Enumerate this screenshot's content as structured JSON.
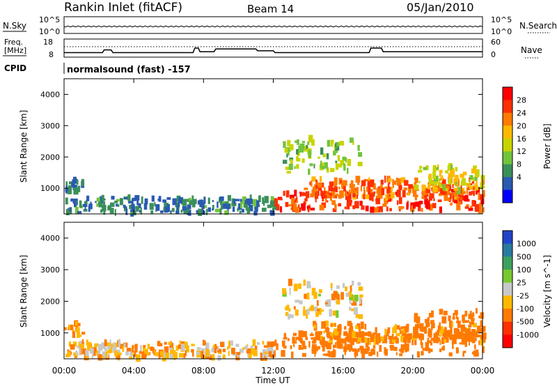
{
  "header": {
    "station": "Rankin Inlet (fitACF)",
    "beam": "Beam 14",
    "date": "05/Jan/2010"
  },
  "top_panel": {
    "left_label": "N.Sky",
    "right_label": "N.Search",
    "left_ticks": [
      "10^5",
      "10^0"
    ],
    "right_ticks": [
      "10^5",
      "10^0"
    ]
  },
  "freq_panel": {
    "left_label_1": "Freq.",
    "left_label_2": "[MHz]",
    "right_label": "Nave",
    "left_ticks": [
      "18",
      "8"
    ],
    "right_ticks": [
      "60",
      "0"
    ],
    "cpid_label": "CPID",
    "cpid_text": "normalsound (fast) -157"
  },
  "xaxis": {
    "label": "Time UT",
    "ticks": [
      "00:00",
      "04:00",
      "08:00",
      "12:00",
      "16:00",
      "20:00",
      "00:00"
    ]
  },
  "power_panel": {
    "ylabel": "Slant Range [km]",
    "yticks": [
      "1000",
      "2000",
      "3000",
      "4000"
    ],
    "cbar_label": "Power [dB]",
    "cbar_ticks": [
      "28",
      "24",
      "20",
      "16",
      "12",
      "8",
      "4"
    ],
    "cbar_colors": [
      "#ff0000",
      "#ff3000",
      "#ff7a00",
      "#ffb800",
      "#c8d400",
      "#72c43c",
      "#3a8f5a",
      "#2a5ab0",
      "#0000ff"
    ]
  },
  "velocity_panel": {
    "ylabel": "Slant Range [km]",
    "yticks": [
      "1000",
      "2000",
      "3000",
      "4000"
    ],
    "cbar_label": "Velocity [m s^-1]",
    "cbar_ticks": [
      "1000",
      "500",
      "100",
      "25",
      "-25",
      "-100",
      "-500",
      "-1000"
    ],
    "cbar_colors": [
      "#2244c8",
      "#2a7aa0",
      "#3ea060",
      "#78c830",
      "#c8c8c8",
      "#ffb800",
      "#ff7a00",
      "#ff3000",
      "#ff0000"
    ]
  },
  "chart_data": {
    "type": "heatmap",
    "x_range_hours": [
      0,
      24
    ],
    "y_range_km": [
      180,
      4500
    ],
    "freq_series": [
      {
        "t": 0,
        "f": 10.5
      },
      {
        "t": 2.2,
        "f": 10.5
      },
      {
        "t": 2.3,
        "f": 12
      },
      {
        "t": 2.7,
        "f": 12
      },
      {
        "t": 2.8,
        "f": 10.5
      },
      {
        "t": 7.4,
        "f": 10.5
      },
      {
        "t": 7.5,
        "f": 13
      },
      {
        "t": 7.7,
        "f": 13
      },
      {
        "t": 7.8,
        "f": 11
      },
      {
        "t": 8.6,
        "f": 11
      },
      {
        "t": 8.7,
        "f": 12.5
      },
      {
        "t": 11,
        "f": 12.5
      },
      {
        "t": 11.1,
        "f": 11.5
      },
      {
        "t": 12,
        "f": 11.5
      },
      {
        "t": 12.1,
        "f": 10.5
      },
      {
        "t": 17.5,
        "f": 10.5
      },
      {
        "t": 17.6,
        "f": 13
      },
      {
        "t": 18.2,
        "f": 13
      },
      {
        "t": 18.3,
        "f": 11
      },
      {
        "t": 24,
        "f": 11
      }
    ],
    "echo_regions": [
      {
        "t0": 12.0,
        "t1": 24.0,
        "r0": 300,
        "r1": 1000,
        "power": 26,
        "velocity": -300
      },
      {
        "t0": 14.0,
        "t1": 24.0,
        "r0": 700,
        "r1": 1300,
        "power": 24,
        "velocity": -150
      },
      {
        "t0": 20.0,
        "t1": 24.0,
        "r0": 900,
        "r1": 1700,
        "power": 16,
        "velocity": -200
      },
      {
        "t0": 12.5,
        "t1": 17.0,
        "r0": 1500,
        "r1": 2600,
        "power": 12,
        "velocity": -50
      },
      {
        "t0": 0.0,
        "t1": 12.0,
        "r0": 200,
        "r1": 700,
        "power": 6,
        "velocity": -80
      },
      {
        "t0": 0.0,
        "t1": 1.0,
        "r0": 900,
        "r1": 1300,
        "power": 6,
        "velocity": -150
      }
    ]
  }
}
